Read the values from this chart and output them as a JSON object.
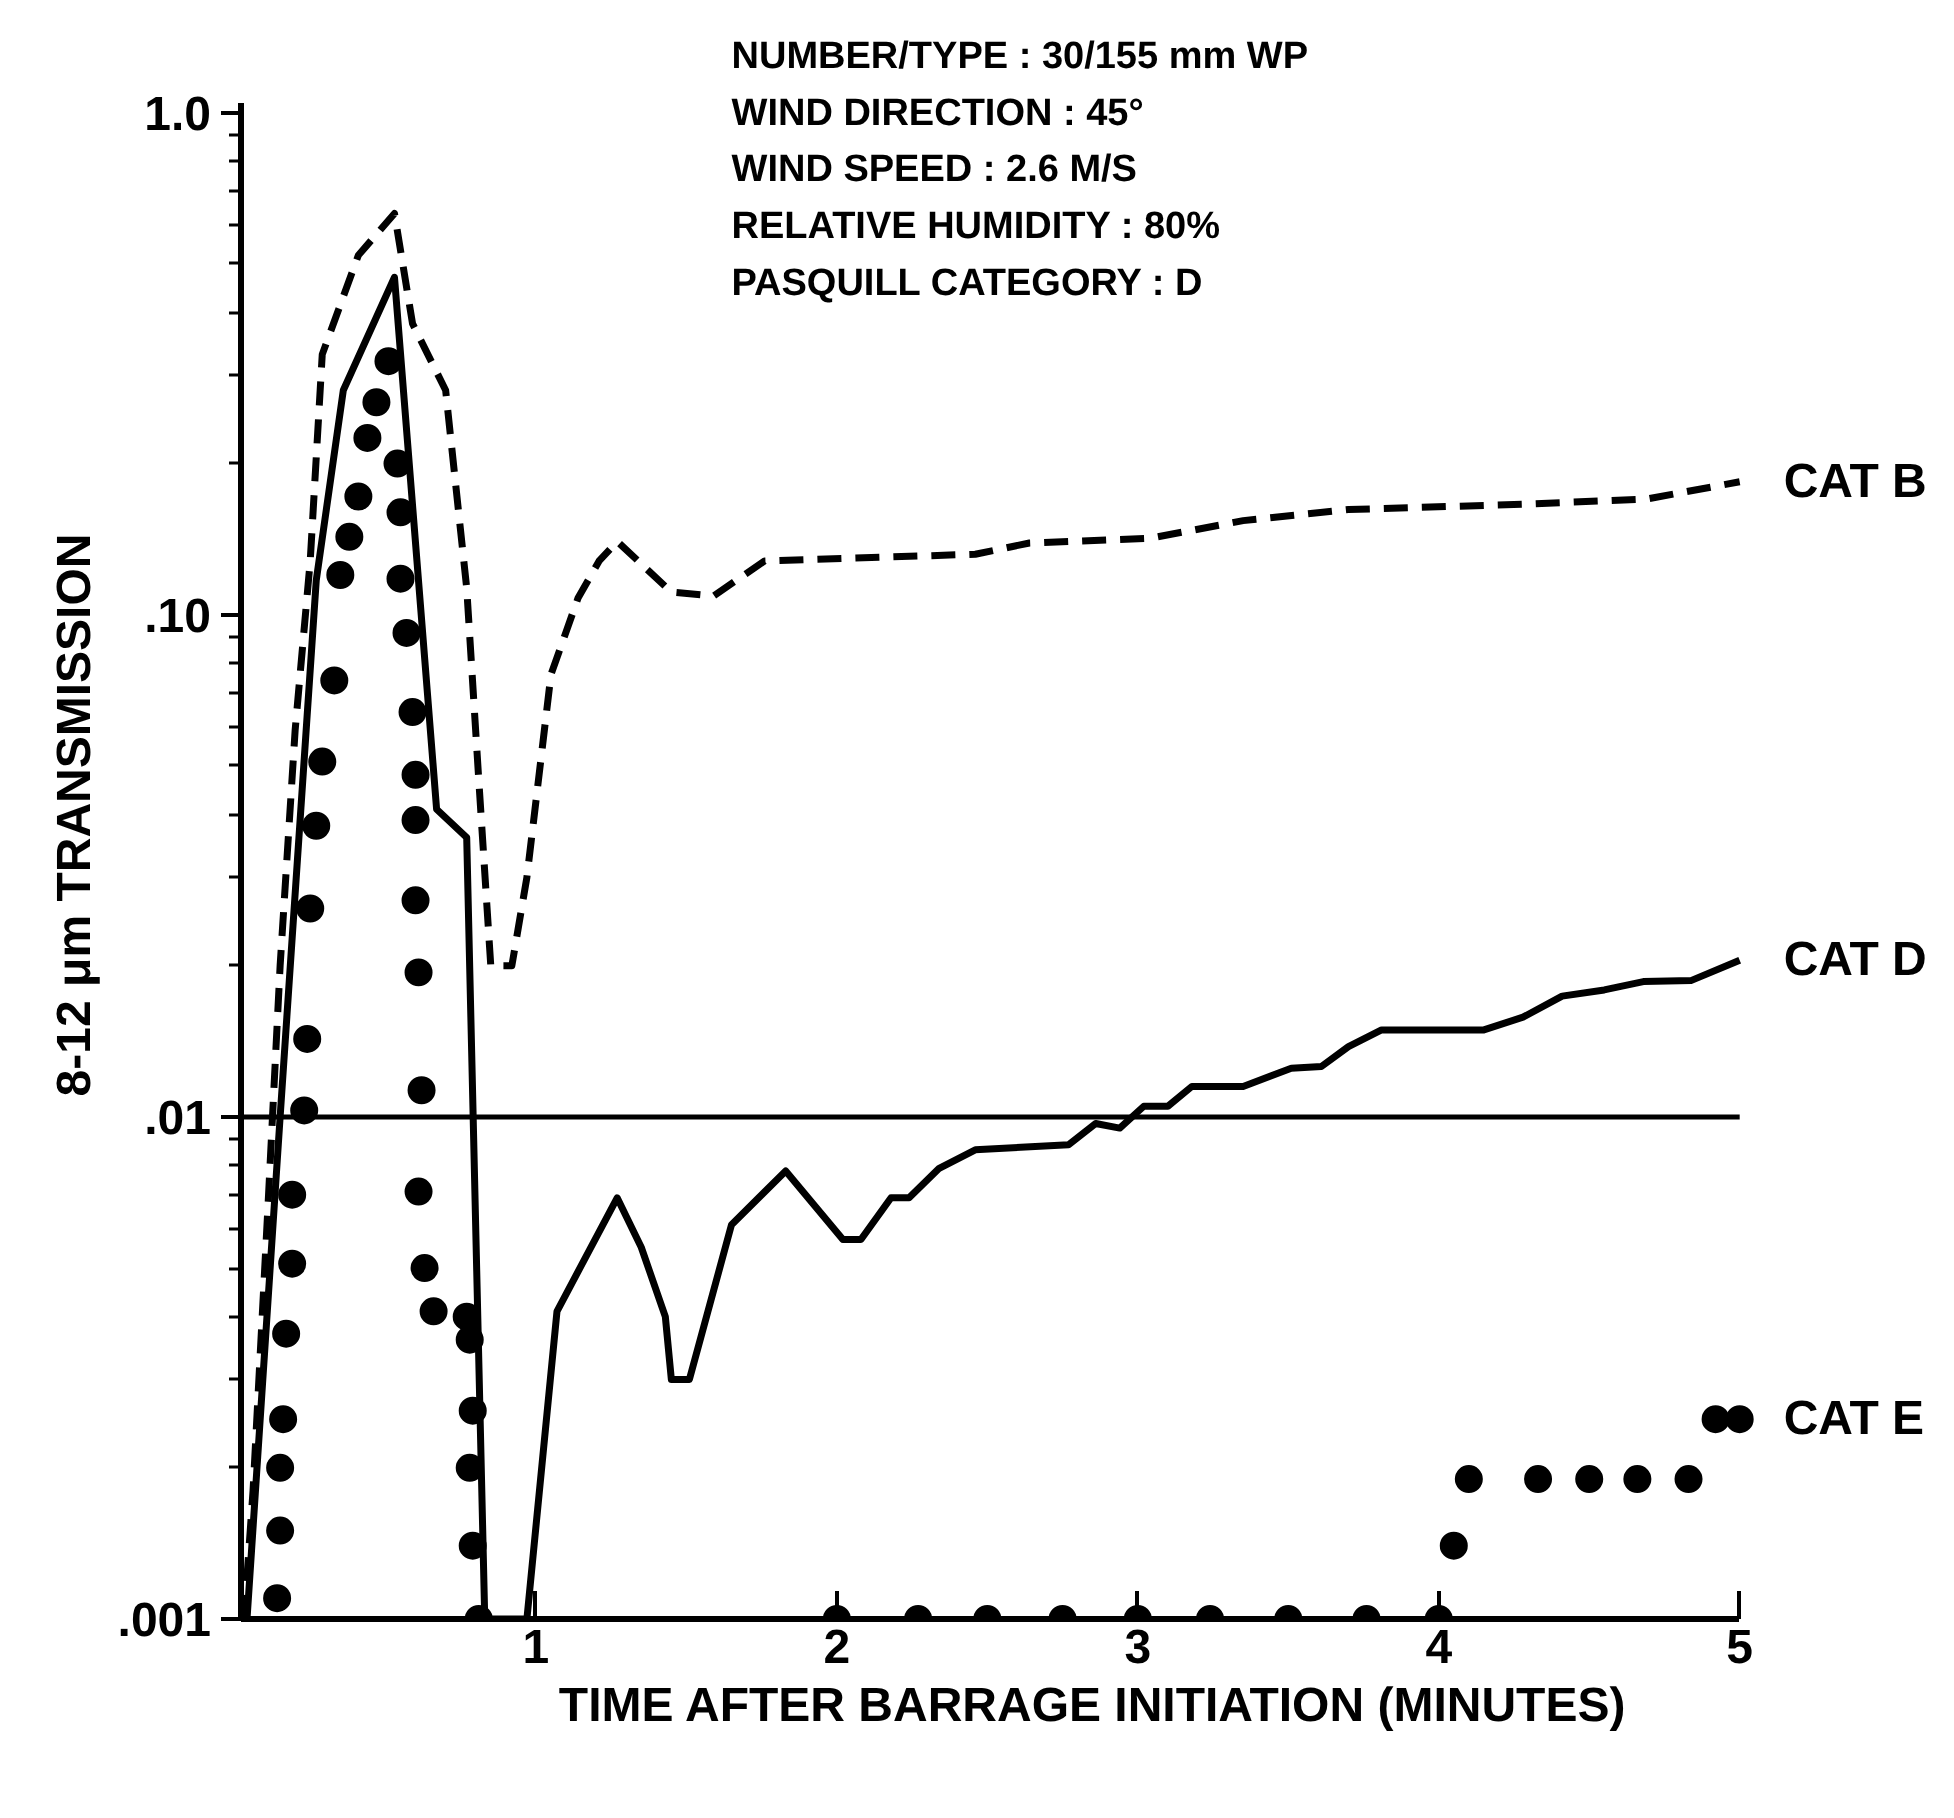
{
  "chart_data": {
    "type": "line",
    "xlabel": "TIME AFTER BARRAGE INITIATION (MINUTES)",
    "ylabel": "8-12 μm TRANSMISSION",
    "annotations": [
      "NUMBER/TYPE : 30/155 mm WP",
      "WIND DIRECTION : 45°",
      "WIND SPEED : 2.6 M/S",
      "RELATIVE HUMIDITY : 80%",
      "PASQUILL CATEGORY : D"
    ],
    "log": "y",
    "grid": false,
    "legend": false,
    "xlim": [
      0.02,
      5.0
    ],
    "xticks": [
      1,
      2,
      3,
      4,
      5
    ],
    "ylim": [
      0.001,
      1.05
    ],
    "yticks": [
      {
        "value": 0.001,
        "label": ".001"
      },
      {
        "value": 0.01,
        "label": ".01"
      },
      {
        "value": 0.1,
        "label": ".10"
      },
      {
        "value": 1.0,
        "label": "1.0"
      }
    ],
    "ref_lines": [
      {
        "axis": "y",
        "value": 0.01,
        "color": "#000000",
        "line_style": "solid"
      }
    ],
    "series": [
      {
        "name": "CAT B",
        "color": "#000000",
        "line_style": "dashed",
        "marker": "none",
        "x": [
          0.03,
          0.06,
          0.11,
          0.15,
          0.2,
          0.25,
          0.29,
          0.41,
          0.53,
          0.59,
          0.7,
          0.77,
          0.81,
          0.85,
          0.92,
          0.97,
          1.05,
          1.14,
          1.21,
          1.27,
          1.45,
          1.59,
          1.76,
          2.46,
          2.64,
          3.04,
          3.35,
          3.7,
          4.28,
          4.69,
          5.0
        ],
        "values": [
          0.001,
          0.0018,
          0.0067,
          0.02,
          0.059,
          0.128,
          0.33,
          0.52,
          0.63,
          0.38,
          0.28,
          0.113,
          0.047,
          0.02,
          0.02,
          0.03,
          0.076,
          0.108,
          0.128,
          0.14,
          0.111,
          0.109,
          0.128,
          0.132,
          0.139,
          0.142,
          0.154,
          0.162,
          0.166,
          0.17,
          0.184
        ]
      },
      {
        "name": "CAT D",
        "color": "#000000",
        "line_style": "solid",
        "marker": "none",
        "x": [
          0.04,
          0.15,
          0.27,
          0.36,
          0.53,
          0.67,
          0.77,
          0.83,
          0.97,
          1.07,
          1.27,
          1.35,
          1.43,
          1.45,
          1.51,
          1.65,
          1.83,
          2.02,
          2.08,
          2.18,
          2.24,
          2.34,
          2.46,
          2.77,
          2.86,
          2.94,
          3.02,
          3.1,
          3.18,
          3.35,
          3.51,
          3.61,
          3.7,
          3.81,
          4.15,
          4.28,
          4.41,
          4.55,
          4.68,
          4.84,
          5.0
        ],
        "values": [
          0.001,
          0.01,
          0.117,
          0.28,
          0.47,
          0.041,
          0.036,
          0.001,
          0.001,
          0.0041,
          0.0069,
          0.0055,
          0.004,
          0.003,
          0.003,
          0.0061,
          0.0078,
          0.0057,
          0.0057,
          0.0069,
          0.0069,
          0.0079,
          0.0086,
          0.0088,
          0.0097,
          0.0095,
          0.0105,
          0.0105,
          0.0115,
          0.0115,
          0.0125,
          0.0126,
          0.0138,
          0.0149,
          0.0149,
          0.0158,
          0.0174,
          0.0179,
          0.0186,
          0.0187,
          0.0205
        ]
      },
      {
        "name": "CAT E",
        "type": "scatter",
        "color": "#000000",
        "marker": "circle",
        "x": [
          0.14,
          0.15,
          0.15,
          0.16,
          0.17,
          0.19,
          0.19,
          0.23,
          0.24,
          0.25,
          0.27,
          0.29,
          0.33,
          0.35,
          0.38,
          0.41,
          0.44,
          0.47,
          0.51,
          0.54,
          0.55,
          0.55,
          0.57,
          0.59,
          0.6,
          0.6,
          0.6,
          0.61,
          0.62,
          0.61,
          0.63,
          0.66,
          0.77,
          0.78,
          0.79,
          0.78,
          0.79,
          0.81,
          2.0,
          2.27,
          2.5,
          2.75,
          3.0,
          3.24,
          3.5,
          3.76,
          4.0,
          4.05,
          4.1,
          4.33,
          4.5,
          4.66,
          4.83,
          4.92,
          5.0
        ],
        "values": [
          0.0011,
          0.0015,
          0.002,
          0.0025,
          0.0037,
          0.0051,
          0.007,
          0.0103,
          0.0143,
          0.026,
          0.038,
          0.051,
          0.074,
          0.12,
          0.143,
          0.172,
          0.225,
          0.265,
          0.32,
          0.2,
          0.16,
          0.118,
          0.092,
          0.064,
          0.048,
          0.039,
          0.027,
          0.0194,
          0.0113,
          0.0071,
          0.005,
          0.0041,
          0.004,
          0.0036,
          0.0026,
          0.002,
          0.0014,
          0.001,
          0.001,
          0.001,
          0.001,
          0.001,
          0.001,
          0.001,
          0.001,
          0.001,
          0.001,
          0.0014,
          0.0019,
          0.0019,
          0.0019,
          0.0019,
          0.0019,
          0.0025,
          0.0025
        ]
      }
    ]
  }
}
